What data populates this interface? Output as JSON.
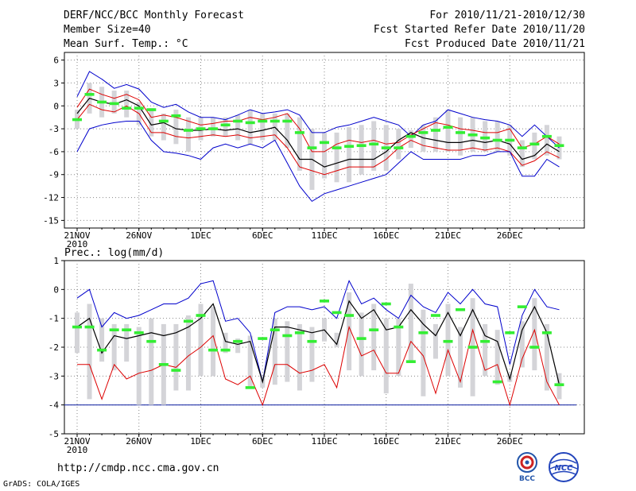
{
  "header": {
    "title": "DERF/NCC/BCC Monthly Forecast",
    "member_size": "Member Size=40",
    "variable": "Mean Surf. Temp.: °C",
    "period": "For 2010/11/21-2010/12/30",
    "started": "Fcst Started Refer Date 2010/11/20",
    "produced": "Fcst Produced Date 2010/11/21"
  },
  "footer": {
    "url": "http://cmdp.ncc.cma.gov.cn",
    "grads": "GrADS: COLA/IGES"
  },
  "logos": {
    "bcc": "BCC",
    "ncc": "NCC"
  },
  "colors": {
    "envelope": "#0000cc",
    "spread": "#dd0000",
    "mean": "#000000",
    "observed": "#33ee33",
    "box": "#d4d4d8",
    "grid": "#888888"
  },
  "chart_data": [
    {
      "type": "line",
      "title": "Mean Surf. Temp.: °C",
      "ylabel": "°C",
      "ylim": [
        -16,
        7
      ],
      "yticks": [
        6,
        3,
        0,
        -3,
        -6,
        -9,
        -12,
        -15
      ],
      "ytick_labels": [
        "6",
        "3",
        "0",
        "-3",
        "-6",
        "-9",
        "-12",
        "-15"
      ],
      "xticks": [
        1,
        6,
        11,
        16,
        21,
        26,
        31,
        36
      ],
      "xtick_labels": [
        "21NOV",
        "26NOV",
        "1DEC",
        "6DEC",
        "11DEC",
        "16DEC",
        "21DEC",
        "26DEC"
      ],
      "year_label": "2010",
      "x": [
        1,
        2,
        3,
        4,
        5,
        6,
        7,
        8,
        9,
        10,
        11,
        12,
        13,
        14,
        15,
        16,
        17,
        18,
        19,
        20,
        21,
        22,
        23,
        24,
        25,
        26,
        27,
        28,
        29,
        30,
        31,
        32,
        33,
        34,
        35,
        36,
        37,
        38,
        39,
        40
      ],
      "series": [
        {
          "name": "max",
          "values": [
            1.2,
            4.5,
            3.5,
            2.3,
            2.8,
            2.2,
            0.5,
            -0.2,
            0.2,
            -0.8,
            -1.5,
            -1.5,
            -1.8,
            -1.2,
            -0.5,
            -1.0,
            -0.8,
            -0.5,
            -1.2,
            -3.5,
            -3.5,
            -2.8,
            -2.5,
            -2.0,
            -1.5,
            -2.0,
            -2.5,
            -4.0,
            -2.5,
            -2.0,
            -0.5,
            -1.0,
            -1.5,
            -1.8,
            -2.0,
            -2.5,
            -4.0,
            -2.5,
            -4.0,
            -5.5
          ]
        },
        {
          "name": "p90",
          "values": [
            -0.2,
            2.2,
            1.5,
            1.0,
            1.5,
            0.8,
            -1.5,
            -1.2,
            -1.5,
            -2.0,
            -2.5,
            -2.3,
            -2.0,
            -2.0,
            -1.5,
            -1.8,
            -1.5,
            -1.0,
            -3.0,
            -6.0,
            -6.0,
            -5.0,
            -4.5,
            -4.8,
            -4.5,
            -5.0,
            -4.8,
            -3.8,
            -3.0,
            -2.2,
            -2.5,
            -3.0,
            -3.2,
            -3.5,
            -3.5,
            -3.0,
            -5.5,
            -5.0,
            -4.0,
            -5.0
          ]
        },
        {
          "name": "mean",
          "values": [
            -1.0,
            1.0,
            0.5,
            0.2,
            0.8,
            0.0,
            -2.5,
            -2.2,
            -3.0,
            -3.2,
            -3.2,
            -3.0,
            -3.2,
            -3.0,
            -3.5,
            -3.2,
            -2.8,
            -4.5,
            -7.0,
            -7.0,
            -8.0,
            -7.5,
            -7.0,
            -7.0,
            -7.0,
            -6.0,
            -4.5,
            -3.5,
            -4.2,
            -4.5,
            -4.8,
            -4.8,
            -4.5,
            -4.8,
            -4.5,
            -5.0,
            -7.0,
            -6.5,
            -5.0,
            -6.0
          ]
        },
        {
          "name": "p10",
          "values": [
            -1.8,
            0.2,
            -0.5,
            -0.8,
            0.0,
            -1.0,
            -3.5,
            -3.5,
            -4.0,
            -4.2,
            -4.0,
            -3.8,
            -4.0,
            -3.8,
            -4.2,
            -4.0,
            -3.8,
            -5.5,
            -8.0,
            -8.5,
            -9.0,
            -8.5,
            -8.0,
            -8.0,
            -8.0,
            -7.0,
            -5.5,
            -4.5,
            -5.2,
            -5.5,
            -5.8,
            -5.8,
            -5.5,
            -5.8,
            -5.5,
            -6.0,
            -7.8,
            -7.2,
            -6.0,
            -6.8
          ]
        },
        {
          "name": "min",
          "values": [
            -6.0,
            -3.0,
            -2.5,
            -2.2,
            -2.0,
            -2.0,
            -4.5,
            -6.0,
            -6.2,
            -6.5,
            -7.0,
            -5.5,
            -5.0,
            -5.5,
            -5.0,
            -5.5,
            -4.5,
            -7.5,
            -10.5,
            -12.5,
            -11.5,
            -11.0,
            -10.5,
            -10.0,
            -9.5,
            -9.0,
            -7.5,
            -6.0,
            -7.0,
            -7.0,
            -7.0,
            -7.0,
            -6.5,
            -6.5,
            -6.0,
            -6.0,
            -9.2,
            -9.2,
            -7.0,
            -8.0
          ]
        },
        {
          "name": "observed",
          "values": [
            -1.8,
            1.5,
            0.5,
            0.3,
            -0.3,
            -0.3,
            -0.5,
            -2.0,
            -1.3,
            -3.2,
            -3.0,
            -3.0,
            -2.5,
            -2.0,
            -2.2,
            -2.0,
            -2.0,
            -2.0,
            -3.5,
            -5.5,
            -4.8,
            -5.5,
            -5.3,
            -5.2,
            -5.0,
            -5.5,
            -5.5,
            -4.0,
            -3.5,
            -3.2,
            -2.8,
            -3.5,
            -3.8,
            -4.2,
            -4.5,
            -4.5,
            -5.5,
            -5.0,
            -4.0,
            -5.2
          ]
        }
      ],
      "boxes": {
        "top": [
          -0.5,
          3.0,
          2.5,
          2.0,
          2.0,
          0.5,
          -0.3,
          -1.0,
          -0.5,
          -1.5,
          -1.5,
          -1.5,
          -1.5,
          -1.2,
          -0.5,
          -1.0,
          -1.0,
          -1.0,
          -1.5,
          -3.0,
          -3.5,
          -3.5,
          -2.8,
          -2.5,
          -2.0,
          -2.5,
          -3.0,
          -3.2,
          -2.5,
          -1.5,
          -0.5,
          -1.5,
          -1.5,
          -2.0,
          -2.0,
          -2.5,
          -4.5,
          -3.5,
          -2.5,
          -4.0
        ],
        "bottom": [
          -3.0,
          -1.0,
          -1.5,
          -1.0,
          -1.5,
          -2.5,
          -4.0,
          -4.5,
          -5.0,
          -6.0,
          -4.5,
          -4.0,
          -4.0,
          -4.5,
          -5.0,
          -4.5,
          -4.5,
          -5.5,
          -8.5,
          -11.0,
          -9.5,
          -10.0,
          -10.0,
          -9.0,
          -8.5,
          -8.5,
          -7.0,
          -5.5,
          -6.0,
          -6.0,
          -6.0,
          -6.5,
          -6.0,
          -6.0,
          -6.0,
          -6.5,
          -8.0,
          -7.0,
          -6.5,
          -7.0
        ]
      }
    },
    {
      "type": "line",
      "title": "Prec.: log(mm/d)",
      "ylabel": "log(mm/d)",
      "ylim": [
        -5,
        1
      ],
      "yticks": [
        1,
        0,
        -1,
        -2,
        -3,
        -4,
        -5
      ],
      "ytick_labels": [
        "1",
        "0",
        "-1",
        "-2",
        "-3",
        "-4",
        "-5"
      ],
      "xticks": [
        1,
        6,
        11,
        16,
        21,
        26,
        31,
        36
      ],
      "xtick_labels": [
        "21NOV",
        "26NOV",
        "1DEC",
        "6DEC",
        "11DEC",
        "16DEC",
        "21DEC",
        "26DEC"
      ],
      "year_label": "2010",
      "baseline": -4,
      "x": [
        1,
        2,
        3,
        4,
        5,
        6,
        7,
        8,
        9,
        10,
        11,
        12,
        13,
        14,
        15,
        16,
        17,
        18,
        19,
        20,
        21,
        22,
        23,
        24,
        25,
        26,
        27,
        28,
        29,
        30,
        31,
        32,
        33,
        34,
        35,
        36,
        37,
        38,
        39,
        40
      ],
      "series": [
        {
          "name": "max",
          "values": [
            -0.3,
            0.0,
            -1.3,
            -0.8,
            -1.0,
            -0.9,
            -0.7,
            -0.5,
            -0.5,
            -0.3,
            0.2,
            0.3,
            -1.1,
            -1.0,
            -1.5,
            -3.2,
            -0.8,
            -0.6,
            -0.6,
            -0.7,
            -0.6,
            -1.0,
            0.3,
            -0.5,
            -0.3,
            -0.7,
            -1.0,
            -0.2,
            -0.6,
            -0.8,
            -0.1,
            -0.5,
            0.0,
            -0.5,
            -0.6,
            -2.6,
            -0.9,
            0.0,
            -0.6,
            -0.7
          ]
        },
        {
          "name": "mean",
          "values": [
            -1.3,
            -1.0,
            -2.2,
            -1.6,
            -1.7,
            -1.6,
            -1.5,
            -1.6,
            -1.5,
            -1.3,
            -1.0,
            -0.5,
            -1.8,
            -1.9,
            -1.8,
            -3.2,
            -1.3,
            -1.3,
            -1.4,
            -1.5,
            -1.4,
            -1.9,
            -0.4,
            -1.0,
            -0.7,
            -1.4,
            -1.3,
            -0.7,
            -1.2,
            -1.6,
            -0.8,
            -1.6,
            -0.7,
            -1.6,
            -1.8,
            -3.1,
            -1.4,
            -0.6,
            -1.5,
            -3.3
          ]
        },
        {
          "name": "p10",
          "values": [
            -2.6,
            -2.6,
            -3.8,
            -2.6,
            -3.1,
            -2.9,
            -2.8,
            -2.6,
            -2.7,
            -2.3,
            -2.0,
            -1.6,
            -3.1,
            -3.3,
            -3.0,
            -4.0,
            -2.6,
            -2.6,
            -2.9,
            -2.8,
            -2.6,
            -3.4,
            -1.3,
            -2.3,
            -2.1,
            -2.9,
            -2.9,
            -1.8,
            -2.3,
            -3.6,
            -2.1,
            -3.2,
            -1.4,
            -2.8,
            -2.6,
            -4.0,
            -2.4,
            -1.4,
            -3.2,
            -4.0
          ]
        },
        {
          "name": "observed",
          "values": [
            -1.3,
            -1.3,
            -2.1,
            -1.4,
            -1.4,
            -1.5,
            -1.8,
            -2.6,
            -2.8,
            -1.1,
            -0.9,
            -2.1,
            -2.1,
            -1.8,
            -3.4,
            -1.7,
            -1.4,
            -1.6,
            -1.5,
            -1.8,
            -0.4,
            -0.8,
            -0.9,
            -1.7,
            -1.4,
            -0.5,
            -1.3,
            -2.5,
            -1.5,
            -0.9,
            -1.8,
            -0.7,
            -2.0,
            -1.8,
            -3.2,
            -1.5,
            -0.6,
            -2.0,
            -1.5,
            -3.3
          ]
        }
      ],
      "boxes": {
        "top": [
          -0.8,
          -0.5,
          -1.0,
          -1.2,
          -1.2,
          -1.3,
          -1.0,
          -1.2,
          -1.2,
          -0.9,
          -0.5,
          -0.6,
          -1.5,
          -1.7,
          -1.6,
          -3.0,
          -1.0,
          -1.1,
          -1.2,
          -1.3,
          -1.0,
          -1.5,
          -0.1,
          -0.8,
          -0.5,
          -1.0,
          -1.0,
          0.2,
          -0.7,
          -1.2,
          -0.5,
          -1.3,
          -0.3,
          -1.2,
          -1.4,
          -2.9,
          -1.1,
          -0.3,
          -1.2,
          -2.9
        ],
        "bottom": [
          -2.2,
          -3.8,
          -2.5,
          -2.8,
          -2.5,
          -4.0,
          -4.0,
          -4.0,
          -3.5,
          -3.5,
          -3.0,
          -3.0,
          -2.2,
          -2.2,
          -3.4,
          -3.4,
          -3.3,
          -3.2,
          -3.5,
          -3.2,
          -1.8,
          -2.0,
          -2.8,
          -3.0,
          -2.8,
          -3.6,
          -3.0,
          -2.5,
          -3.7,
          -2.4,
          -3.0,
          -3.4,
          -3.7,
          -3.0,
          -3.3,
          -3.2,
          -2.7,
          -2.8,
          -3.5,
          -3.8
        ]
      }
    }
  ]
}
